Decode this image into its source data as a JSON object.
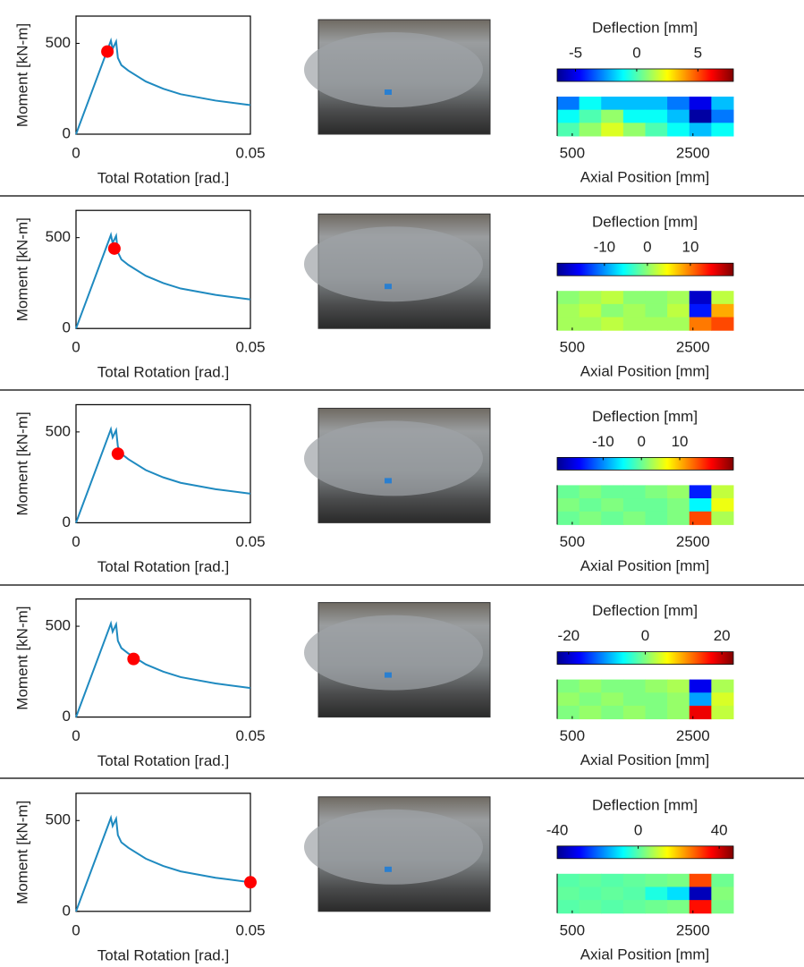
{
  "chart_data": [
    {
      "type": "line",
      "xlabel": "Total Rotation [rad.]",
      "ylabel": "Moment [kN-m]",
      "x": [
        0,
        0.01,
        0.0105,
        0.0115,
        0.012,
        0.013,
        0.015,
        0.02,
        0.025,
        0.03,
        0.04,
        0.05
      ],
      "series": [
        {
          "color": "#1f8ac0",
          "values": [
            0,
            515,
            470,
            510,
            420,
            380,
            350,
            290,
            250,
            220,
            185,
            160
          ]
        }
      ],
      "marker": {
        "x": 0.009,
        "y": 455,
        "color": "#ff0000"
      },
      "xlim": [
        0,
        0.05
      ],
      "ylim": [
        0,
        650
      ],
      "xticks": [
        0,
        0.05
      ],
      "yticks": [
        0,
        500
      ]
    },
    {
      "type": "heatmap",
      "title": "Deflection [mm]",
      "clim": [
        -6.5,
        7.9
      ],
      "cticks": [
        -5,
        0,
        5
      ],
      "xlabel": "Axial Position [mm]",
      "xlim": [
        250,
        3170
      ],
      "xticks": [
        500,
        2500
      ],
      "z": [
        [
          -3,
          -1,
          -2,
          -2,
          -2,
          -3,
          -5,
          -2
        ],
        [
          -1,
          0,
          1,
          -1,
          -1,
          -2,
          -6,
          -3
        ],
        [
          0,
          1,
          2,
          1,
          0,
          -1,
          -2,
          -1
        ]
      ]
    },
    {
      "type": "line",
      "xlabel": "Total Rotation [rad.]",
      "ylabel": "Moment [kN-m]",
      "x": [
        0,
        0.01,
        0.0105,
        0.0115,
        0.012,
        0.013,
        0.015,
        0.02,
        0.025,
        0.03,
        0.04,
        0.05
      ],
      "series": [
        {
          "color": "#1f8ac0",
          "values": [
            0,
            515,
            470,
            510,
            420,
            380,
            350,
            290,
            250,
            220,
            185,
            160
          ]
        }
      ],
      "marker": {
        "x": 0.011,
        "y": 440,
        "color": "#ff0000"
      },
      "xlim": [
        0,
        0.05
      ],
      "ylim": [
        0,
        650
      ],
      "xticks": [
        0,
        0.05
      ],
      "yticks": [
        0,
        500
      ]
    },
    {
      "type": "heatmap",
      "title": "Deflection [mm]",
      "clim": [
        -21,
        20
      ],
      "cticks": [
        -10,
        0,
        10
      ],
      "xlabel": "Axial Position [mm]",
      "xlim": [
        250,
        3170
      ],
      "xticks": [
        500,
        2500
      ],
      "z": [
        [
          0,
          1,
          2,
          0,
          0,
          1,
          -18,
          2
        ],
        [
          1,
          2,
          0,
          1,
          0,
          2,
          -15,
          8
        ],
        [
          1,
          1,
          2,
          1,
          1,
          1,
          10,
          12
        ]
      ]
    },
    {
      "type": "line",
      "xlabel": "Total Rotation [rad.]",
      "ylabel": "Moment [kN-m]",
      "x": [
        0,
        0.01,
        0.0105,
        0.0115,
        0.012,
        0.013,
        0.015,
        0.02,
        0.025,
        0.03,
        0.04,
        0.05
      ],
      "series": [
        {
          "color": "#1f8ac0",
          "values": [
            0,
            515,
            470,
            510,
            420,
            380,
            350,
            290,
            250,
            220,
            185,
            160
          ]
        }
      ],
      "marker": {
        "x": 0.012,
        "y": 380,
        "color": "#ff0000"
      },
      "xlim": [
        0,
        0.05
      ],
      "ylim": [
        0,
        650
      ],
      "xticks": [
        0,
        0.05
      ],
      "yticks": [
        0,
        500
      ]
    },
    {
      "type": "heatmap",
      "title": "Deflection [mm]",
      "clim": [
        -22,
        24
      ],
      "cticks": [
        -10,
        0,
        10
      ],
      "xlabel": "Axial Position [mm]",
      "xlim": [
        250,
        3170
      ],
      "xticks": [
        500,
        2500
      ],
      "z": [
        [
          0,
          1,
          0,
          0,
          1,
          2,
          -15,
          4
        ],
        [
          1,
          0,
          1,
          0,
          0,
          1,
          -5,
          6
        ],
        [
          0,
          1,
          0,
          1,
          0,
          1,
          15,
          3
        ]
      ]
    },
    {
      "type": "line",
      "xlabel": "Total Rotation [rad.]",
      "ylabel": "Moment [kN-m]",
      "x": [
        0,
        0.01,
        0.0105,
        0.0115,
        0.012,
        0.013,
        0.015,
        0.02,
        0.025,
        0.03,
        0.04,
        0.05
      ],
      "series": [
        {
          "color": "#1f8ac0",
          "values": [
            0,
            515,
            470,
            510,
            420,
            380,
            350,
            290,
            250,
            220,
            185,
            160
          ]
        }
      ],
      "marker": {
        "x": 0.0165,
        "y": 320,
        "color": "#ff0000"
      },
      "xlim": [
        0,
        0.05
      ],
      "ylim": [
        0,
        650
      ],
      "xticks": [
        0,
        0.05
      ],
      "yticks": [
        0,
        500
      ]
    },
    {
      "type": "heatmap",
      "title": "Deflection [mm]",
      "clim": [
        -23,
        23
      ],
      "cticks": [
        -20,
        0,
        20
      ],
      "xlabel": "Axial Position [mm]",
      "xlim": [
        250,
        3170
      ],
      "xticks": [
        500,
        2500
      ],
      "z": [
        [
          0,
          1,
          0,
          0,
          1,
          2,
          -18,
          2
        ],
        [
          1,
          0,
          1,
          0,
          0,
          1,
          -10,
          4
        ],
        [
          0,
          1,
          0,
          1,
          0,
          1,
          18,
          3
        ]
      ]
    },
    {
      "type": "line",
      "xlabel": "Total Rotation [rad.]",
      "ylabel": "Moment [kN-m]",
      "x": [
        0,
        0.01,
        0.0105,
        0.0115,
        0.012,
        0.013,
        0.015,
        0.02,
        0.025,
        0.03,
        0.04,
        0.05
      ],
      "series": [
        {
          "color": "#1f8ac0",
          "values": [
            0,
            515,
            470,
            510,
            420,
            380,
            350,
            290,
            250,
            220,
            185,
            160
          ]
        }
      ],
      "marker": {
        "x": 0.05,
        "y": 160,
        "color": "#ff0000"
      },
      "xlim": [
        0,
        0.05
      ],
      "ylim": [
        0,
        650
      ],
      "xticks": [
        0,
        0.05
      ],
      "yticks": [
        0,
        500
      ]
    },
    {
      "type": "heatmap",
      "title": "Deflection [mm]",
      "clim": [
        -40,
        47
      ],
      "cticks": [
        -40,
        0,
        40
      ],
      "xlabel": "Axial Position [mm]",
      "xlim": [
        250,
        3170
      ],
      "xticks": [
        500,
        2500
      ],
      "z": [
        [
          0,
          1,
          0,
          1,
          2,
          3,
          30,
          2
        ],
        [
          1,
          0,
          1,
          0,
          -5,
          -10,
          -35,
          4
        ],
        [
          0,
          1,
          0,
          1,
          2,
          3,
          35,
          3
        ]
      ]
    }
  ]
}
